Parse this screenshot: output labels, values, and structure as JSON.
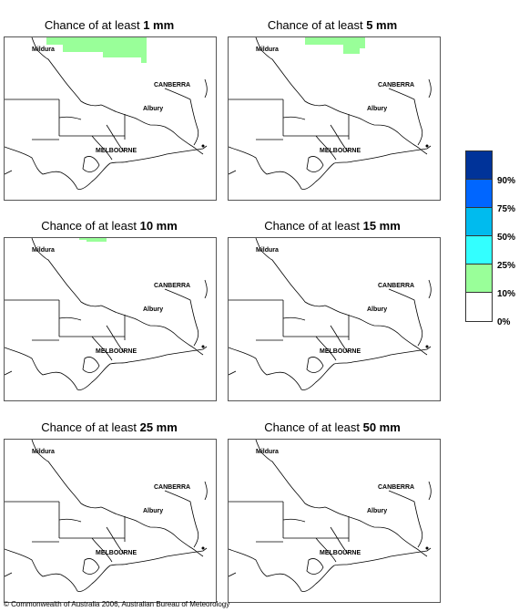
{
  "panels": [
    {
      "title_prefix": "Chance of at least ",
      "threshold": "1 mm"
    },
    {
      "title_prefix": "Chance of at least ",
      "threshold": "5 mm"
    },
    {
      "title_prefix": "Chance of at least ",
      "threshold": "10 mm"
    },
    {
      "title_prefix": "Chance of at least ",
      "threshold": "15 mm"
    },
    {
      "title_prefix": "Chance of at least ",
      "threshold": "25 mm"
    },
    {
      "title_prefix": "Chance of at least ",
      "threshold": "50 mm"
    }
  ],
  "places": {
    "mildura": "Mildura",
    "canberra": "CANBERRA",
    "albury": "Albury",
    "melbourne": "MELBOURNE"
  },
  "legend": {
    "labels": [
      "90%",
      "75%",
      "50%",
      "25%",
      "10%",
      "0%"
    ],
    "colors": [
      "#003399",
      "#0066ff",
      "#00bbee",
      "#33ffff",
      "#99ff99",
      "#ffffff"
    ]
  },
  "probability_fill_color": "#99ff99",
  "copyright": "© Commonwealth of Australia 2006, Australian Bureau of Meteorology"
}
